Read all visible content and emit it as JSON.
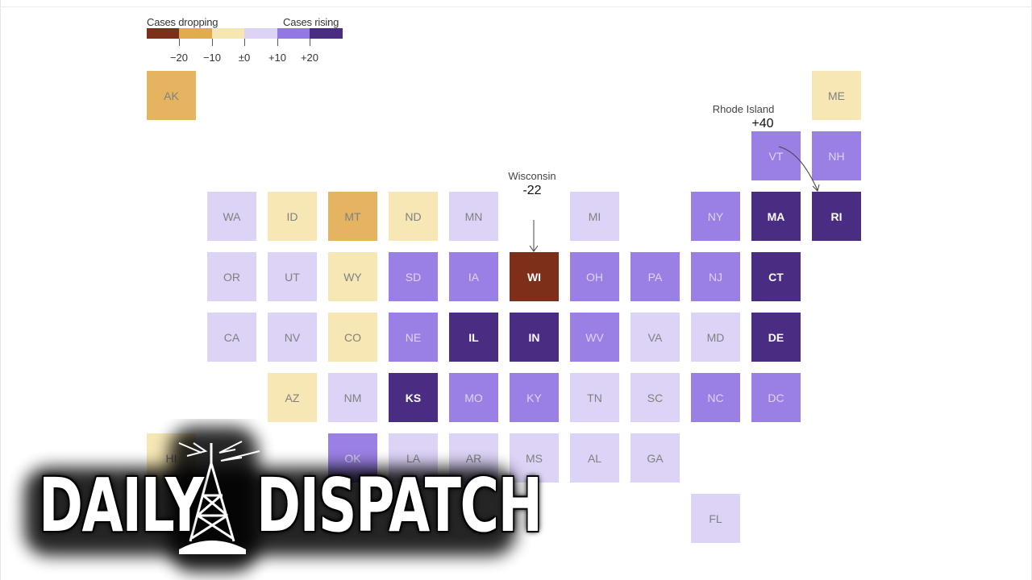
{
  "legend": {
    "dropping_label": "Cases dropping",
    "rising_label": "Cases rising",
    "swatches": [
      "#7e2f1a",
      "#e0ac4e",
      "#f6e7b1",
      "#ddd3f6",
      "#9378e3",
      "#4a2d83"
    ],
    "tick_labels": [
      "−20",
      "−10",
      "±0",
      "+10",
      "+20"
    ]
  },
  "map_tiles": [
    {
      "abbr": "AK",
      "color": "#e4b460"
    },
    {
      "abbr": "ME",
      "color": "#f6e7b5"
    },
    {
      "abbr": "VT",
      "color": "#9a80e4"
    },
    {
      "abbr": "NH",
      "color": "#9a80e4"
    },
    {
      "abbr": "WA",
      "color": "#ddd3f6"
    },
    {
      "abbr": "ID",
      "color": "#f6e7b5"
    },
    {
      "abbr": "MT",
      "color": "#e4b460"
    },
    {
      "abbr": "ND",
      "color": "#f6e7b5"
    },
    {
      "abbr": "MN",
      "color": "#ddd3f6"
    },
    {
      "abbr": "MI",
      "color": "#ddd3f6"
    },
    {
      "abbr": "NY",
      "color": "#9a80e4"
    },
    {
      "abbr": "MA",
      "color": "#4a2d83"
    },
    {
      "abbr": "RI",
      "color": "#4a2d83"
    },
    {
      "abbr": "OR",
      "color": "#ddd3f6"
    },
    {
      "abbr": "UT",
      "color": "#ddd3f6"
    },
    {
      "abbr": "WY",
      "color": "#f6e7b5"
    },
    {
      "abbr": "SD",
      "color": "#9a80e4"
    },
    {
      "abbr": "IA",
      "color": "#9a80e4"
    },
    {
      "abbr": "WI",
      "color": "#7e2f1a"
    },
    {
      "abbr": "OH",
      "color": "#9a80e4"
    },
    {
      "abbr": "PA",
      "color": "#9a80e4"
    },
    {
      "abbr": "NJ",
      "color": "#9a80e4"
    },
    {
      "abbr": "CT",
      "color": "#4a2d83"
    },
    {
      "abbr": "CA",
      "color": "#ddd3f6"
    },
    {
      "abbr": "NV",
      "color": "#ddd3f6"
    },
    {
      "abbr": "CO",
      "color": "#f6e7b5"
    },
    {
      "abbr": "NE",
      "color": "#9a80e4"
    },
    {
      "abbr": "IL",
      "color": "#4a2d83"
    },
    {
      "abbr": "IN",
      "color": "#4a2d83"
    },
    {
      "abbr": "WV",
      "color": "#9a80e4"
    },
    {
      "abbr": "VA",
      "color": "#ddd3f6"
    },
    {
      "abbr": "MD",
      "color": "#ddd3f6"
    },
    {
      "abbr": "DE",
      "color": "#4a2d83"
    },
    {
      "abbr": "AZ",
      "color": "#f6e7b5"
    },
    {
      "abbr": "NM",
      "color": "#ddd3f6"
    },
    {
      "abbr": "KS",
      "color": "#4a2d83"
    },
    {
      "abbr": "MO",
      "color": "#9a80e4"
    },
    {
      "abbr": "KY",
      "color": "#9a80e4"
    },
    {
      "abbr": "TN",
      "color": "#ddd3f6"
    },
    {
      "abbr": "SC",
      "color": "#ddd3f6"
    },
    {
      "abbr": "NC",
      "color": "#9a80e4"
    },
    {
      "abbr": "DC",
      "color": "#9a80e4"
    },
    {
      "abbr": "HI",
      "color": "#f6e7b5"
    },
    {
      "abbr": "OK",
      "color": "#9a80e4"
    },
    {
      "abbr": "LA",
      "color": "#ddd3f6"
    },
    {
      "abbr": "AR",
      "color": "#ddd3f6"
    },
    {
      "abbr": "MS",
      "color": "#ddd3f6"
    },
    {
      "abbr": "AL",
      "color": "#ddd3f6"
    },
    {
      "abbr": "GA",
      "color": "#ddd3f6"
    },
    {
      "abbr": "FL",
      "color": "#ddd3f6"
    }
  ],
  "annotations": {
    "wisconsin": {
      "name": "Wisconsin",
      "value": "-22"
    },
    "rhode_island": {
      "name": "Rhode Island",
      "value": "+40"
    }
  },
  "logo": {
    "word1": "DAILY",
    "word2": "DISPATCH"
  }
}
